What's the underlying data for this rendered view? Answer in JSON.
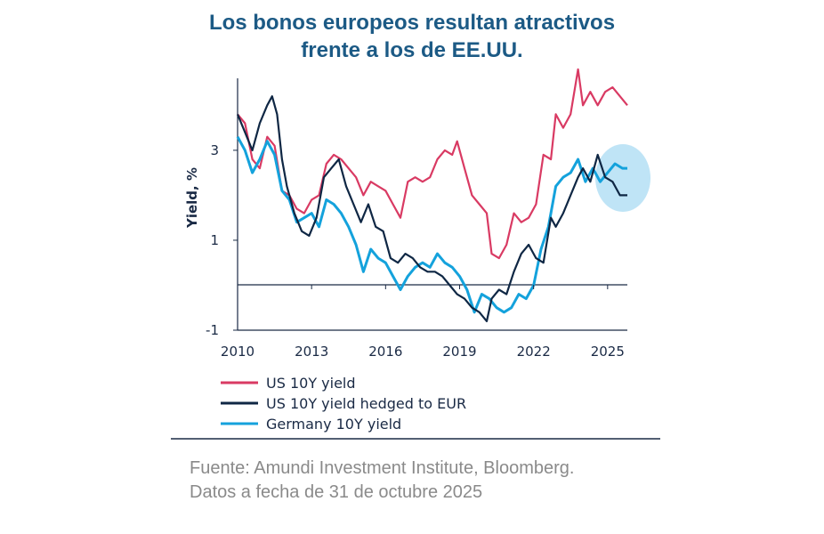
{
  "title_lines": [
    "Los bonos europeos resultan atractivos",
    "frente a los de EE.UU."
  ],
  "source_lines": [
    "Fuente: Amundi Investment Institute, Bloomberg.",
    "Datos a fecha de 31 de octubre 2025"
  ],
  "colors": {
    "title": "#1c5a85",
    "us": "#d93a63",
    "hedged": "#0f2744",
    "germany": "#14a2dc",
    "highlight": "#bfe4f6"
  },
  "chart_data": {
    "type": "line",
    "ylabel": "Yield, %",
    "xlim": [
      2010,
      2025.8
    ],
    "ylim": [
      -1,
      4.6
    ],
    "x_ticks": [
      2010,
      2013,
      2016,
      2019,
      2022,
      2025
    ],
    "y_ticks": [
      -1,
      1,
      3
    ],
    "x_tick_labels": [
      "2010",
      "2013",
      "2016",
      "2019",
      "2022",
      "2025"
    ],
    "y_tick_labels": [
      "-1",
      "1",
      "3"
    ],
    "annotation": "highlight circle around 2025 hedged and German yields",
    "series": [
      {
        "name": "US 10Y yield",
        "key": "us",
        "x": [
          2010.0,
          2010.3,
          2010.6,
          2010.9,
          2011.2,
          2011.5,
          2011.8,
          2012.1,
          2012.4,
          2012.7,
          2013.0,
          2013.3,
          2013.6,
          2013.9,
          2014.2,
          2014.5,
          2014.8,
          2015.1,
          2015.4,
          2015.7,
          2016.0,
          2016.3,
          2016.6,
          2016.9,
          2017.2,
          2017.5,
          2017.8,
          2018.1,
          2018.4,
          2018.7,
          2018.9,
          2019.2,
          2019.5,
          2019.8,
          2020.1,
          2020.3,
          2020.6,
          2020.9,
          2021.2,
          2021.5,
          2021.8,
          2022.1,
          2022.4,
          2022.7,
          2022.9,
          2023.2,
          2023.5,
          2023.8,
          2024.0,
          2024.3,
          2024.6,
          2024.9,
          2025.2,
          2025.5,
          2025.8
        ],
        "y": [
          3.8,
          3.6,
          2.8,
          2.6,
          3.3,
          3.1,
          2.1,
          2.0,
          1.7,
          1.6,
          1.9,
          2.0,
          2.7,
          2.9,
          2.8,
          2.6,
          2.4,
          2.0,
          2.3,
          2.2,
          2.1,
          1.8,
          1.5,
          2.3,
          2.4,
          2.3,
          2.4,
          2.8,
          3.0,
          2.9,
          3.2,
          2.6,
          2.0,
          1.8,
          1.6,
          0.7,
          0.6,
          0.9,
          1.6,
          1.4,
          1.5,
          1.8,
          2.9,
          2.8,
          3.8,
          3.5,
          3.8,
          4.8,
          4.0,
          4.3,
          4.0,
          4.3,
          4.4,
          4.2,
          4.0
        ]
      },
      {
        "name": "US 10Y yield hedged to EUR",
        "key": "hedged",
        "x": [
          2010.0,
          2010.3,
          2010.6,
          2010.9,
          2011.2,
          2011.4,
          2011.6,
          2011.8,
          2012.0,
          2012.3,
          2012.6,
          2012.9,
          2013.2,
          2013.5,
          2013.8,
          2014.1,
          2014.4,
          2014.7,
          2015.0,
          2015.3,
          2015.6,
          2015.9,
          2016.2,
          2016.5,
          2016.8,
          2017.1,
          2017.4,
          2017.7,
          2018.0,
          2018.3,
          2018.6,
          2018.9,
          2019.2,
          2019.5,
          2019.8,
          2020.1,
          2020.3,
          2020.6,
          2020.9,
          2021.2,
          2021.5,
          2021.8,
          2022.1,
          2022.4,
          2022.7,
          2022.9,
          2023.2,
          2023.5,
          2023.8,
          2024.0,
          2024.3,
          2024.6,
          2024.9,
          2025.2,
          2025.5,
          2025.8
        ],
        "y": [
          3.8,
          3.4,
          3.0,
          3.6,
          4.0,
          4.2,
          3.8,
          2.8,
          2.2,
          1.6,
          1.2,
          1.1,
          1.5,
          2.4,
          2.6,
          2.8,
          2.2,
          1.8,
          1.4,
          1.8,
          1.3,
          1.2,
          0.6,
          0.5,
          0.7,
          0.6,
          0.4,
          0.3,
          0.3,
          0.2,
          0.0,
          -0.2,
          -0.3,
          -0.5,
          -0.6,
          -0.8,
          -0.3,
          -0.1,
          -0.2,
          0.3,
          0.7,
          0.9,
          0.6,
          0.5,
          1.5,
          1.3,
          1.6,
          2.0,
          2.4,
          2.6,
          2.3,
          2.9,
          2.4,
          2.3,
          2.0,
          2.0
        ]
      },
      {
        "name": "Germany 10Y yield",
        "key": "germany",
        "x": [
          2010.0,
          2010.3,
          2010.6,
          2010.9,
          2011.2,
          2011.5,
          2011.8,
          2012.1,
          2012.4,
          2012.7,
          2013.0,
          2013.3,
          2013.6,
          2013.9,
          2014.2,
          2014.5,
          2014.8,
          2015.1,
          2015.4,
          2015.7,
          2016.0,
          2016.3,
          2016.6,
          2016.9,
          2017.2,
          2017.5,
          2017.8,
          2018.1,
          2018.4,
          2018.7,
          2019.0,
          2019.3,
          2019.6,
          2019.9,
          2020.2,
          2020.5,
          2020.8,
          2021.1,
          2021.4,
          2021.7,
          2022.0,
          2022.3,
          2022.6,
          2022.9,
          2023.2,
          2023.5,
          2023.8,
          2024.1,
          2024.4,
          2024.7,
          2025.0,
          2025.3,
          2025.6,
          2025.8
        ],
        "y": [
          3.3,
          3.0,
          2.5,
          2.8,
          3.2,
          2.9,
          2.1,
          1.9,
          1.4,
          1.5,
          1.6,
          1.3,
          1.9,
          1.8,
          1.6,
          1.3,
          0.9,
          0.3,
          0.8,
          0.6,
          0.5,
          0.2,
          -0.1,
          0.2,
          0.4,
          0.5,
          0.4,
          0.7,
          0.5,
          0.4,
          0.2,
          -0.1,
          -0.6,
          -0.2,
          -0.3,
          -0.5,
          -0.6,
          -0.5,
          -0.2,
          -0.3,
          0.0,
          0.8,
          1.3,
          2.2,
          2.4,
          2.5,
          2.8,
          2.3,
          2.6,
          2.3,
          2.5,
          2.7,
          2.6,
          2.6
        ]
      }
    ]
  }
}
